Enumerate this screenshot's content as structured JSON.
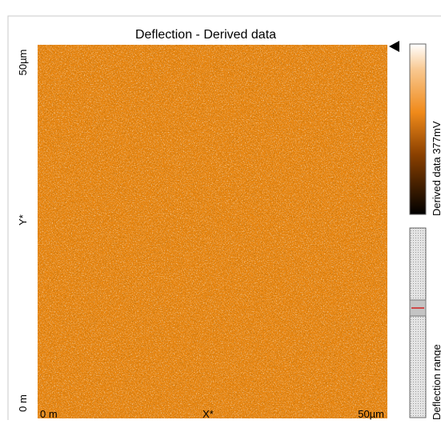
{
  "header": {
    "title": "Deflection - Derived data"
  },
  "axes": {
    "y_top": "50µm",
    "y_mid": "Y*",
    "y_bottom": "0 m",
    "x_left": "0 m",
    "x_mid": "X*",
    "x_right": "50µm"
  },
  "colorbar": {
    "label": "Derived data 377mV"
  },
  "range": {
    "label": "Deflection range"
  }
}
